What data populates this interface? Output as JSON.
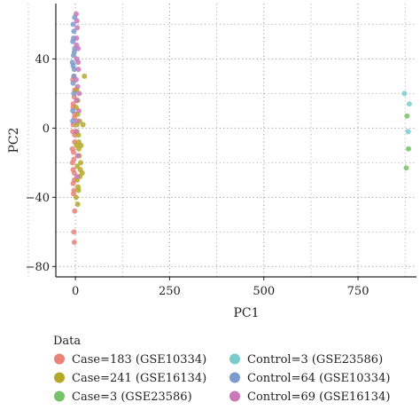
{
  "chart_data": {
    "type": "scatter",
    "title": "",
    "xlabel": "PC1",
    "ylabel": "PC2",
    "xlim": [
      -52,
      905
    ],
    "ylim": [
      -86,
      72
    ],
    "xticks": [
      0,
      250,
      500,
      750
    ],
    "yticks": [
      40,
      0,
      -40,
      -80
    ],
    "xtick_labels": [
      "0",
      "250",
      "500",
      "750"
    ],
    "ytick_labels": [
      "40",
      "0",
      "−40",
      "−80"
    ],
    "grid": true,
    "legend": {
      "title": "Data",
      "placement": "bottom",
      "columns": 2
    },
    "series": [
      {
        "name": "Case=183 (GSE10334)",
        "color": "#E8837A",
        "points": [
          [
            -4,
            30
          ],
          [
            -2,
            22
          ],
          [
            -6,
            12
          ],
          [
            -3,
            6
          ],
          [
            -7,
            -2
          ],
          [
            -2,
            -8
          ],
          [
            -5,
            -14
          ],
          [
            -8,
            -20
          ],
          [
            -3,
            -26
          ],
          [
            -6,
            -32
          ],
          [
            -4,
            -36
          ],
          [
            -7,
            28
          ],
          [
            -3,
            18
          ],
          [
            -6,
            2
          ],
          [
            -2,
            -4
          ],
          [
            -8,
            -12
          ],
          [
            -4,
            -18
          ],
          [
            -6,
            -24
          ],
          [
            -3,
            -30
          ],
          [
            -5,
            -38
          ],
          [
            -2,
            -48
          ],
          [
            -4,
            -60
          ],
          [
            -3,
            -66
          ],
          [
            -6,
            14
          ],
          [
            -2,
            8
          ]
        ]
      },
      {
        "name": "Case=241 (GSE16134)",
        "color": "#B5A828",
        "points": [
          [
            2,
            12
          ],
          [
            6,
            8
          ],
          [
            4,
            2
          ],
          [
            8,
            -4
          ],
          [
            3,
            -10
          ],
          [
            10,
            -16
          ],
          [
            5,
            -22
          ],
          [
            12,
            -28
          ],
          [
            7,
            -34
          ],
          [
            14,
            -20
          ],
          [
            9,
            -8
          ],
          [
            4,
            -2
          ],
          [
            11,
            4
          ],
          [
            6,
            16
          ],
          [
            3,
            22
          ],
          [
            9,
            -12
          ],
          [
            13,
            -24
          ],
          [
            5,
            -30
          ],
          [
            8,
            -36
          ],
          [
            2,
            -40
          ],
          [
            15,
            -10
          ],
          [
            18,
            -26
          ],
          [
            20,
            2
          ],
          [
            24,
            30
          ],
          [
            6,
            -44
          ]
        ]
      },
      {
        "name": "Case=3 (GSE23586)",
        "color": "#79C06A",
        "points": [
          [
            884,
            -12
          ],
          [
            880,
            7
          ],
          [
            878,
            -23
          ]
        ]
      },
      {
        "name": "Control=3 (GSE23586)",
        "color": "#7ACCCC",
        "points": [
          [
            873,
            20
          ],
          [
            886,
            14
          ],
          [
            883,
            -2
          ]
        ]
      },
      {
        "name": "Control=64 (GSE10334)",
        "color": "#7B9BCE",
        "points": [
          [
            -6,
            60
          ],
          [
            -4,
            56
          ],
          [
            -7,
            50
          ],
          [
            -2,
            46
          ],
          [
            -5,
            42
          ],
          [
            -8,
            38
          ],
          [
            -3,
            34
          ],
          [
            -6,
            26
          ],
          [
            -4,
            20
          ],
          [
            -7,
            10
          ],
          [
            -2,
            64
          ],
          [
            -5,
            52
          ],
          [
            -3,
            44
          ],
          [
            -6,
            36
          ],
          [
            -4,
            30
          ],
          [
            -7,
            4
          ]
        ]
      },
      {
        "name": "Control=69 (GSE16134)",
        "color": "#C879B8",
        "points": [
          [
            2,
            66
          ],
          [
            5,
            58
          ],
          [
            3,
            52
          ],
          [
            7,
            46
          ],
          [
            4,
            40
          ],
          [
            8,
            34
          ],
          [
            2,
            28
          ],
          [
            6,
            24
          ],
          [
            3,
            16
          ],
          [
            9,
            10
          ],
          [
            5,
            4
          ],
          [
            2,
            -2
          ],
          [
            6,
            -16
          ],
          [
            4,
            -28
          ],
          [
            3,
            48
          ],
          [
            7,
            38
          ],
          [
            10,
            20
          ],
          [
            4,
            62
          ]
        ]
      }
    ]
  }
}
